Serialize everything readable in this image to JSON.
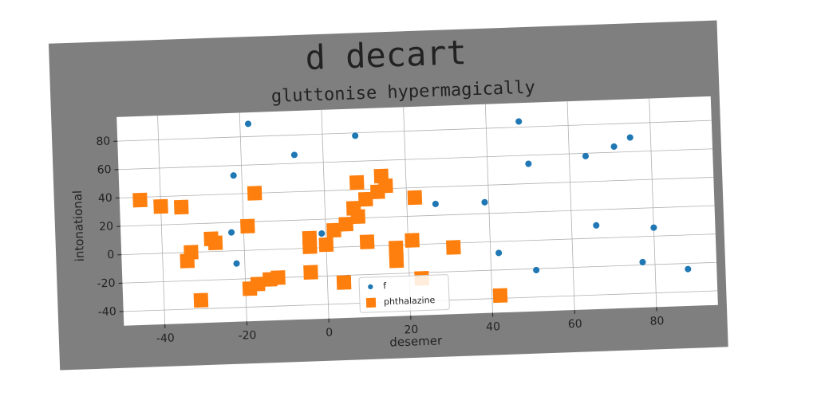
{
  "chart_data": {
    "type": "scatter",
    "title": "d decart",
    "subtitle": "gluttonise hypermagically",
    "xlabel": "desemer",
    "ylabel": "intonational",
    "xlim": [
      -50,
      95
    ],
    "ylim": [
      -50,
      97
    ],
    "xticks": [
      -40,
      -20,
      0,
      20,
      40,
      60,
      80
    ],
    "yticks": [
      -40,
      -20,
      0,
      20,
      40,
      60,
      80
    ],
    "grid": true,
    "legend": "lower center",
    "series": [
      {
        "name": "f",
        "color": "#1f77b4",
        "marker": "o",
        "x": [
          -18,
          -22,
          -23,
          -22,
          -7,
          8,
          -1,
          5,
          27,
          39,
          42,
          48,
          50,
          51,
          64,
          66,
          71,
          75,
          77,
          80,
          88
        ],
        "values": [
          89,
          53,
          13,
          -9,
          66,
          78,
          10,
          -22,
          28,
          28,
          -8,
          84,
          54,
          -21,
          58,
          9,
          64,
          70,
          -18,
          6,
          -24
        ]
      },
      {
        "name": "phthalazine",
        "color": "#ff7f0e",
        "marker": "s",
        "x": [
          -45,
          -40,
          -35,
          -33,
          -34,
          -31,
          -28,
          -27,
          -19,
          -17,
          -19,
          -17,
          -14,
          -12,
          -4,
          -4,
          -4,
          0,
          2,
          4,
          5,
          7,
          8,
          8,
          10,
          10,
          13,
          14,
          15,
          17,
          17,
          21,
          22,
          23,
          31,
          42
        ],
        "values": [
          38,
          33,
          32,
          0,
          -6,
          -34,
          9,
          6,
          17,
          40,
          -27,
          -24,
          -21,
          -20,
          7,
          1,
          -17,
          2,
          12,
          -25,
          16,
          27,
          45,
          21,
          3,
          33,
          38,
          49,
          42,
          -2,
          -11,
          3,
          33,
          -24,
          -3,
          -38
        ]
      }
    ]
  }
}
